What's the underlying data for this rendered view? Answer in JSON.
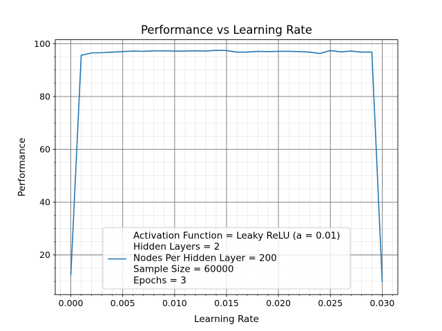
{
  "chart_data": {
    "type": "line",
    "title": "Performance vs Learning Rate",
    "xlabel": "Learning Rate",
    "ylabel": "Performance",
    "xlim": [
      -0.0015,
      0.0315
    ],
    "ylim": [
      5.0,
      101.5
    ],
    "x_ticks": [
      0.0,
      0.005,
      0.01,
      0.015,
      0.02,
      0.025,
      0.03
    ],
    "x_tick_labels": [
      "0.000",
      "0.005",
      "0.010",
      "0.015",
      "0.020",
      "0.025",
      "0.030"
    ],
    "y_ticks": [
      20,
      40,
      60,
      80,
      100
    ],
    "y_tick_labels": [
      "20",
      "40",
      "60",
      "80",
      "100"
    ],
    "grid": "major and minor",
    "legend_placement": "lower center",
    "legend_lines": [
      "Activation Function = Leaky ReLU (a = 0.01)",
      "Hidden Layers = 2",
      "Nodes Per Hidden Layer = 200",
      "Sample Size = 60000",
      "Epochs = 3"
    ],
    "series": [
      {
        "color": "#1f77b4",
        "x": [
          0.0,
          0.001,
          0.002,
          0.003,
          0.004,
          0.005,
          0.006,
          0.007,
          0.008,
          0.009,
          0.01,
          0.011,
          0.012,
          0.013,
          0.014,
          0.015,
          0.016,
          0.017,
          0.018,
          0.019,
          0.02,
          0.021,
          0.022,
          0.023,
          0.024,
          0.025,
          0.026,
          0.027,
          0.028,
          0.029,
          0.03
        ],
        "values": [
          12.3,
          95.6,
          96.5,
          96.6,
          96.8,
          97.0,
          97.2,
          97.1,
          97.3,
          97.3,
          97.2,
          97.2,
          97.3,
          97.2,
          97.5,
          97.4,
          96.8,
          96.8,
          97.1,
          97.0,
          97.1,
          97.1,
          97.0,
          96.8,
          96.3,
          97.4,
          96.9,
          97.2,
          96.8,
          96.8,
          9.8
        ]
      }
    ]
  }
}
